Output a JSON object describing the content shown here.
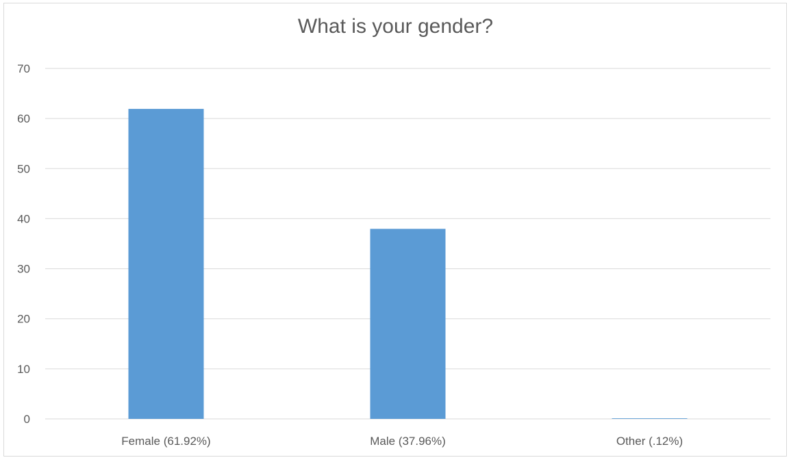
{
  "chart_data": {
    "type": "bar",
    "title": "What is your gender?",
    "categories": [
      "Female (61.92%)",
      "Male (37.96%)",
      "Other (.12%)"
    ],
    "values": [
      61.92,
      37.96,
      0.12
    ],
    "xlabel": "",
    "ylabel": "",
    "ylim": [
      0,
      70
    ],
    "yticks": [
      0,
      10,
      20,
      30,
      40,
      50,
      60,
      70
    ],
    "grid": true,
    "legend": "none",
    "colors": {
      "bar": "#5b9bd5",
      "grid": "#d9d9d9",
      "text": "#595959"
    }
  }
}
